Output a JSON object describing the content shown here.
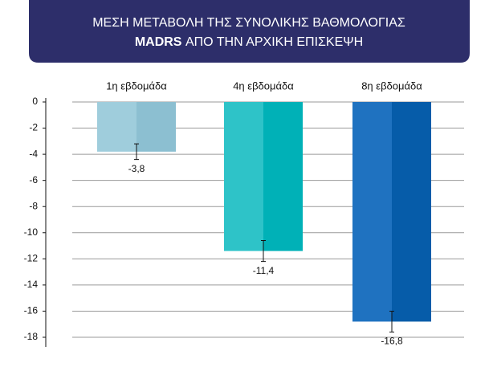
{
  "chart_data": {
    "type": "bar",
    "title": [
      "ΜΕΣΗ ΜΕΤΑΒΟΛΗ ΤΗΣ ΣΥΝΟΛΙΚΗΣ ΒΑΘΜΟΛΟΓΙΑΣ",
      "MADRS",
      "ΑΠΟ ΤΗΝ ΑΡΧΙΚΗ ΕΠΙΣΚΕΨΗ"
    ],
    "categories": [
      "1η εβδομάδα",
      "4η εβδομάδα",
      "8η εβδομάδα"
    ],
    "values": [
      -3.8,
      -11.4,
      -16.8
    ],
    "value_labels": [
      "-3,8",
      "-11,4",
      "-16,8"
    ],
    "errors": [
      0.6,
      0.8,
      0.8
    ],
    "colors": [
      "#9fcddc",
      "#2ec3c8",
      "#1f72c0"
    ],
    "shade_colors": [
      "#8cbfd1",
      "#00b1b7",
      "#065ca9"
    ],
    "ylim": [
      0,
      -18
    ],
    "yticks": [
      0,
      -2,
      -4,
      -6,
      -8,
      -10,
      -12,
      -14,
      -16,
      -18
    ],
    "grid": true
  }
}
